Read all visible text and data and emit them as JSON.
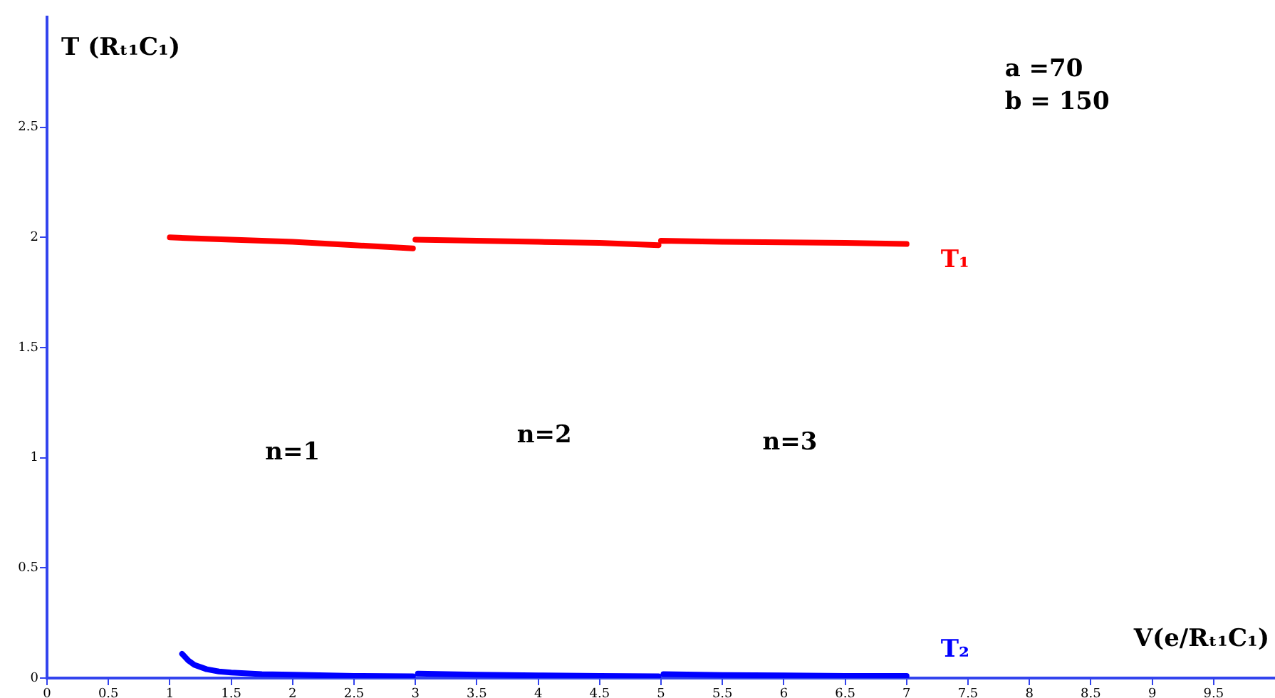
{
  "chart_data": {
    "type": "line",
    "xlabel": "V(e/Rₜ₁C₁)",
    "ylabel": "T (Rₜ₁C₁)",
    "xlim": [
      0,
      10
    ],
    "xticks": [
      0,
      0.5,
      1,
      1.5,
      2,
      2.5,
      3,
      3.5,
      4,
      4.5,
      5,
      5.5,
      6,
      6.5,
      7,
      7.5,
      8,
      8.5,
      9,
      9.5
    ],
    "ylim": [
      0,
      3
    ],
    "yticks": [
      0,
      0.5,
      1,
      1.5,
      2,
      2.5
    ],
    "grid": false,
    "legend": false,
    "marker": "none",
    "line_style": "solid",
    "series": [
      {
        "name": "T₁",
        "color": "#ff0000",
        "x": [
          1,
          1.5,
          2,
          2.5,
          2.98,
          2.99,
          3,
          3.5,
          4,
          4.5,
          4.98,
          4.99,
          5,
          5.5,
          6,
          6.5,
          7
        ],
        "values": [
          2.0,
          1.99,
          1.98,
          1.965,
          1.95,
          null,
          1.99,
          1.985,
          1.98,
          1.975,
          1.965,
          null,
          1.985,
          1.98,
          1.978,
          1.975,
          1.97
        ]
      },
      {
        "name": "T₂",
        "color": "#0000ff",
        "x": [
          1.1,
          1.15,
          1.2,
          1.3,
          1.4,
          1.5,
          1.75,
          2,
          2.5,
          2.98,
          3,
          3.02,
          3.5,
          4,
          4.5,
          4.98,
          5,
          5.02,
          5.5,
          6,
          6.5,
          7
        ],
        "values": [
          0.11,
          0.08,
          0.06,
          0.04,
          0.03,
          0.025,
          0.018,
          0.015,
          0.01,
          0.008,
          null,
          0.02,
          0.015,
          0.012,
          0.01,
          0.008,
          null,
          0.018,
          0.014,
          0.012,
          0.01,
          0.01
        ]
      }
    ],
    "annotations": [
      "n=1",
      "n=2",
      "n=3",
      "a =70",
      "b = 150"
    ]
  }
}
